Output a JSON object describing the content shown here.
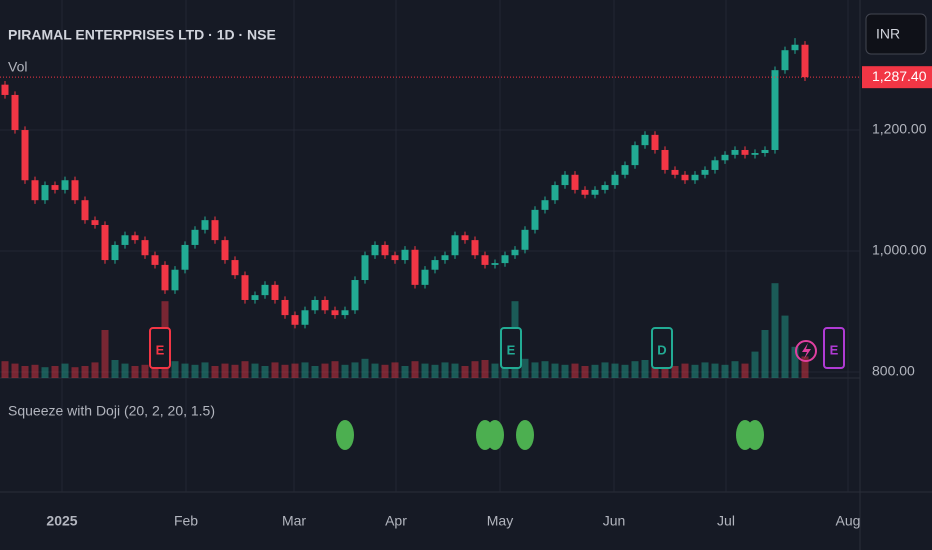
{
  "chart_data": {
    "type": "candlestick",
    "title": "PIRAMAL ENTERPRISES LTD · 1D · NSE",
    "volume_label": "Vol",
    "currency": "INR",
    "indicator_title": "Squeeze with Doji (20, 2, 20, 1.5)",
    "up_color": "#22ab94",
    "down_color": "#f23645",
    "xlim": [
      -0.5,
      85.5
    ],
    "ylim": [
      790,
      1415
    ],
    "yticks": [
      {
        "value": 1200,
        "label": "1,200.00"
      },
      {
        "value": 1000,
        "label": "1,000.00"
      },
      {
        "value": 800,
        "label": "800.00"
      }
    ],
    "xticks": [
      {
        "value": 5.7,
        "label": "2025"
      },
      {
        "value": 18.1,
        "label": "Feb"
      },
      {
        "value": 28.9,
        "label": "Mar"
      },
      {
        "value": 39.1,
        "label": "Apr"
      },
      {
        "value": 49.5,
        "label": "May"
      },
      {
        "value": 60.9,
        "label": "Jun"
      },
      {
        "value": 72.1,
        "label": "Jul"
      },
      {
        "value": 84.3,
        "label": "Aug"
      }
    ],
    "last_price": {
      "value": 1287.4,
      "label": "1,287.40"
    },
    "open": [
      1275,
      1258,
      1200,
      1117,
      1084,
      1109,
      1101,
      1117,
      1084,
      1051,
      1043,
      985,
      1010,
      1026,
      1018,
      993,
      977,
      935,
      969,
      1010,
      1035,
      1051,
      1018,
      985,
      960,
      919,
      927,
      944,
      919,
      894,
      878,
      902,
      919,
      902,
      894,
      902,
      952,
      993,
      1010,
      993,
      985,
      1002,
      944,
      969,
      985,
      993,
      1026,
      1018,
      993,
      977,
      980,
      993,
      1002,
      1035,
      1068,
      1084,
      1109,
      1126,
      1101,
      1093,
      1101,
      1109,
      1126,
      1142,
      1175,
      1192,
      1167,
      1134,
      1126,
      1117,
      1126,
      1134,
      1150,
      1159,
      1167,
      1159,
      1162,
      1167,
      1299,
      1332,
      1341
    ],
    "high": [
      1281,
      1264,
      1206,
      1123,
      1115,
      1115,
      1123,
      1123,
      1090,
      1057,
      1049,
      1016,
      1032,
      1032,
      1024,
      999,
      983,
      975,
      1016,
      1041,
      1057,
      1057,
      1024,
      991,
      966,
      933,
      950,
      950,
      925,
      900,
      908,
      925,
      925,
      908,
      908,
      958,
      999,
      1016,
      1016,
      999,
      1008,
      1008,
      975,
      991,
      999,
      1032,
      1032,
      1024,
      999,
      986,
      999,
      1008,
      1041,
      1074,
      1090,
      1115,
      1132,
      1132,
      1107,
      1107,
      1115,
      1132,
      1148,
      1181,
      1198,
      1198,
      1173,
      1140,
      1132,
      1132,
      1140,
      1156,
      1165,
      1173,
      1173,
      1168,
      1173,
      1305,
      1338,
      1352,
      1347
    ],
    "low": [
      1252,
      1194,
      1111,
      1078,
      1078,
      1095,
      1095,
      1078,
      1045,
      1037,
      979,
      979,
      1004,
      1012,
      987,
      971,
      929,
      929,
      963,
      1004,
      1029,
      1012,
      979,
      954,
      913,
      913,
      921,
      913,
      888,
      872,
      872,
      896,
      896,
      888,
      888,
      896,
      946,
      987,
      987,
      979,
      979,
      938,
      938,
      963,
      979,
      987,
      1012,
      987,
      971,
      971,
      974,
      987,
      996,
      1029,
      1062,
      1078,
      1103,
      1095,
      1087,
      1087,
      1095,
      1103,
      1120,
      1136,
      1169,
      1161,
      1128,
      1120,
      1111,
      1111,
      1120,
      1128,
      1144,
      1153,
      1153,
      1153,
      1156,
      1161,
      1293,
      1326,
      1281
    ],
    "close": [
      1258,
      1200,
      1117,
      1084,
      1109,
      1101,
      1117,
      1084,
      1051,
      1043,
      985,
      1010,
      1026,
      1018,
      993,
      977,
      935,
      969,
      1010,
      1035,
      1051,
      1018,
      985,
      960,
      919,
      927,
      944,
      919,
      894,
      878,
      902,
      919,
      902,
      894,
      902,
      952,
      993,
      1010,
      993,
      985,
      1002,
      944,
      969,
      985,
      993,
      1026,
      1018,
      993,
      977,
      980,
      993,
      1002,
      1035,
      1068,
      1084,
      1109,
      1126,
      1101,
      1093,
      1101,
      1109,
      1126,
      1142,
      1175,
      1192,
      1167,
      1134,
      1126,
      1117,
      1126,
      1134,
      1150,
      1159,
      1167,
      1159,
      1162,
      1167,
      1299,
      1332,
      1341,
      1287.4
    ],
    "volume_ylim": [
      0,
      100
    ],
    "volume": [
      14,
      12,
      10,
      11,
      9,
      10,
      12,
      9,
      10,
      13,
      40,
      15,
      12,
      10,
      11,
      13,
      64,
      14,
      12,
      11,
      13,
      10,
      12,
      11,
      14,
      12,
      10,
      13,
      11,
      12,
      13,
      10,
      12,
      14,
      11,
      13,
      16,
      12,
      11,
      13,
      10,
      14,
      12,
      11,
      13,
      12,
      10,
      14,
      15,
      12,
      20,
      64,
      16,
      13,
      14,
      12,
      11,
      12,
      10,
      11,
      13,
      12,
      11,
      14,
      15,
      12,
      11,
      10,
      12,
      11,
      13,
      12,
      11,
      14,
      12,
      22,
      40,
      79,
      52,
      26,
      18
    ],
    "squeeze_dots": [
      34,
      48,
      49,
      52,
      74,
      75
    ],
    "events": [
      {
        "x": 15.5,
        "label": "E",
        "color": "#f23645"
      },
      {
        "x": 50.6,
        "label": "E",
        "color": "#22ab94"
      },
      {
        "x": 65.7,
        "label": "D",
        "color": "#22ab94"
      },
      {
        "x": 82.9,
        "label": "E",
        "color": "#b03bd4"
      }
    ]
  }
}
